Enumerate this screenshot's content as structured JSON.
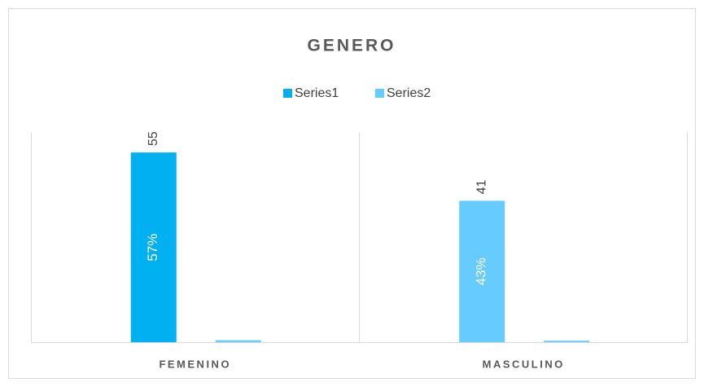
{
  "chart_data": {
    "type": "bar",
    "title": "GENERO",
    "categories": [
      "FEMENINO",
      "MASCULINO"
    ],
    "series": [
      {
        "name": "Series1",
        "color": "#00b0f0",
        "point_colors": [
          "#00b0f0",
          "#66ccff"
        ],
        "values": [
          55,
          41
        ]
      },
      {
        "name": "Series2",
        "color": "#66ccff",
        "point_colors": [
          "#66ccff",
          "#66ccff"
        ],
        "values": [
          0.57,
          0.43
        ],
        "value_labels": [
          "57%",
          "43%"
        ]
      }
    ],
    "ylim": [
      0,
      60
    ],
    "grid": false,
    "legend": "top"
  }
}
